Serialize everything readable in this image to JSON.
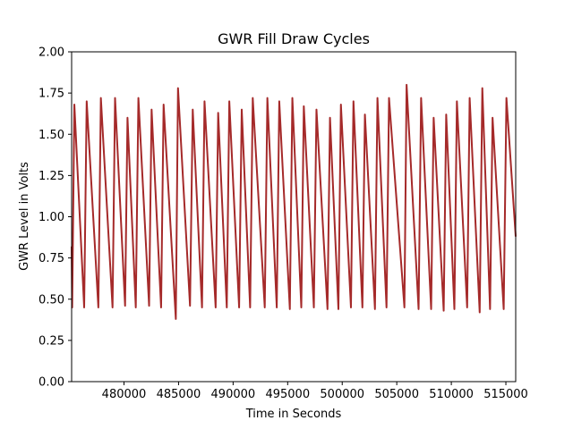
{
  "chart_data": {
    "type": "line",
    "title": "GWR Fill Draw Cycles",
    "xlabel": "Time in Seconds",
    "ylabel": "GWR Level in Volts",
    "xlim": [
      475200,
      515900
    ],
    "ylim": [
      0,
      2.0
    ],
    "x_ticks": [
      480000,
      485000,
      490000,
      495000,
      500000,
      505000,
      510000,
      515000
    ],
    "y_ticks": [
      0.0,
      0.25,
      0.5,
      0.75,
      1.0,
      1.25,
      1.5,
      1.75,
      2.0
    ],
    "y_tick_labels": [
      "0.00",
      "0.25",
      "0.50",
      "0.75",
      "1.00",
      "1.25",
      "1.50",
      "1.75",
      "2.00"
    ],
    "grid": false,
    "line_color": "#a52a2a",
    "series": [
      {
        "x": [
          475200,
          475250,
          475450,
          476350,
          476580,
          477650,
          477880,
          478950,
          479180,
          480100,
          480320,
          481080,
          481320,
          482300,
          482530,
          483400,
          483630,
          484750,
          484950,
          486050,
          486300,
          487150,
          487380,
          488400,
          488630,
          489420,
          489650,
          490550,
          490790,
          491560,
          491800,
          492900,
          493140,
          494000,
          494230,
          495200,
          495430,
          496250,
          496480,
          497400,
          497640,
          498650,
          498880,
          499650,
          499880,
          500800,
          501030,
          501850,
          502080,
          503000,
          503230,
          504060,
          504290,
          505700,
          505900,
          507000,
          507230,
          508150,
          508380,
          509300,
          509530,
          510280,
          510510,
          511450,
          511680,
          512600,
          512840,
          513550,
          513780,
          514800,
          515050,
          515900
        ],
        "y": [
          0.82,
          0.45,
          1.68,
          0.45,
          1.7,
          0.45,
          1.72,
          0.45,
          1.72,
          0.46,
          1.6,
          0.45,
          1.72,
          0.46,
          1.65,
          0.45,
          1.68,
          0.38,
          1.78,
          0.46,
          1.65,
          0.45,
          1.7,
          0.45,
          1.63,
          0.45,
          1.7,
          0.45,
          1.65,
          0.45,
          1.72,
          0.45,
          1.72,
          0.45,
          1.7,
          0.44,
          1.72,
          0.45,
          1.67,
          0.45,
          1.65,
          0.44,
          1.6,
          0.44,
          1.68,
          0.45,
          1.7,
          0.45,
          1.62,
          0.44,
          1.72,
          0.45,
          1.72,
          0.45,
          1.8,
          0.44,
          1.72,
          0.44,
          1.6,
          0.43,
          1.62,
          0.44,
          1.7,
          0.45,
          1.72,
          0.42,
          1.78,
          0.44,
          1.6,
          0.44,
          1.72,
          0.88
        ]
      }
    ]
  }
}
